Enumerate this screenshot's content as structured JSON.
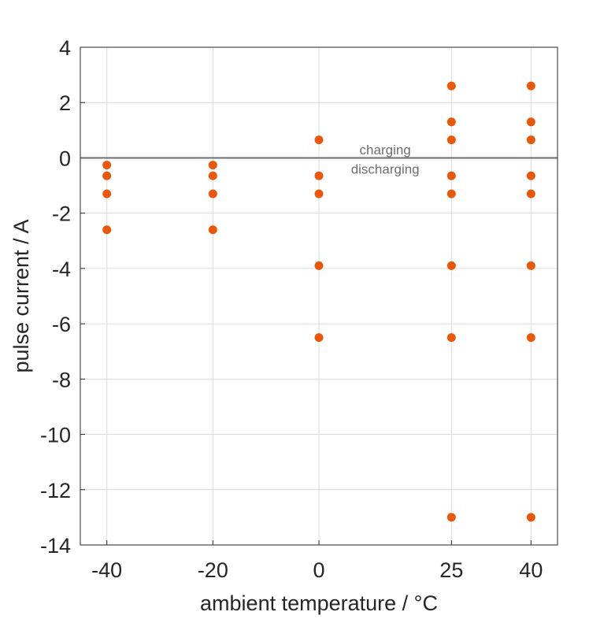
{
  "chart_data": {
    "type": "scatter",
    "title": "",
    "xlabel": "ambient temperature / °C",
    "ylabel": "pulse current / A",
    "xlim": [
      -45,
      45
    ],
    "ylim": [
      -14,
      4
    ],
    "xticks": [
      -40,
      -20,
      0,
      25,
      40
    ],
    "xtick_labels": [
      "-40",
      "-20",
      "0",
      "25",
      "40"
    ],
    "yticks": [
      -14,
      -12,
      -10,
      -8,
      -6,
      -4,
      -2,
      0,
      2,
      4
    ],
    "ytick_labels": [
      "-14",
      "-12",
      "-10",
      "-8",
      "-6",
      "-4",
      "-2",
      "0",
      "2",
      "4"
    ],
    "grid": true,
    "marker_color": "#e8580c",
    "zero_line_color": "#6e6e6e",
    "annotations": [
      {
        "text": "charging",
        "x": 12.5,
        "y": 0.3
      },
      {
        "text": "discharging",
        "x": 12.5,
        "y": -0.4
      }
    ],
    "points": [
      {
        "x": -40,
        "y": -0.26
      },
      {
        "x": -40,
        "y": -0.65
      },
      {
        "x": -40,
        "y": -1.3
      },
      {
        "x": -40,
        "y": -2.6
      },
      {
        "x": -20,
        "y": -0.26
      },
      {
        "x": -20,
        "y": -0.65
      },
      {
        "x": -20,
        "y": -1.3
      },
      {
        "x": -20,
        "y": -2.6
      },
      {
        "x": 0,
        "y": 0.65
      },
      {
        "x": 0,
        "y": -0.65
      },
      {
        "x": 0,
        "y": -1.3
      },
      {
        "x": 0,
        "y": -3.9
      },
      {
        "x": 0,
        "y": -6.5
      },
      {
        "x": 25,
        "y": 2.6
      },
      {
        "x": 25,
        "y": 1.3
      },
      {
        "x": 25,
        "y": 0.65
      },
      {
        "x": 25,
        "y": -0.65
      },
      {
        "x": 25,
        "y": -1.3
      },
      {
        "x": 25,
        "y": -3.9
      },
      {
        "x": 25,
        "y": -6.5
      },
      {
        "x": 25,
        "y": -13
      },
      {
        "x": 40,
        "y": 2.6
      },
      {
        "x": 40,
        "y": 1.3
      },
      {
        "x": 40,
        "y": 0.65
      },
      {
        "x": 40,
        "y": -0.65
      },
      {
        "x": 40,
        "y": -1.3
      },
      {
        "x": 40,
        "y": -3.9
      },
      {
        "x": 40,
        "y": -6.5
      },
      {
        "x": 40,
        "y": -13
      }
    ]
  }
}
